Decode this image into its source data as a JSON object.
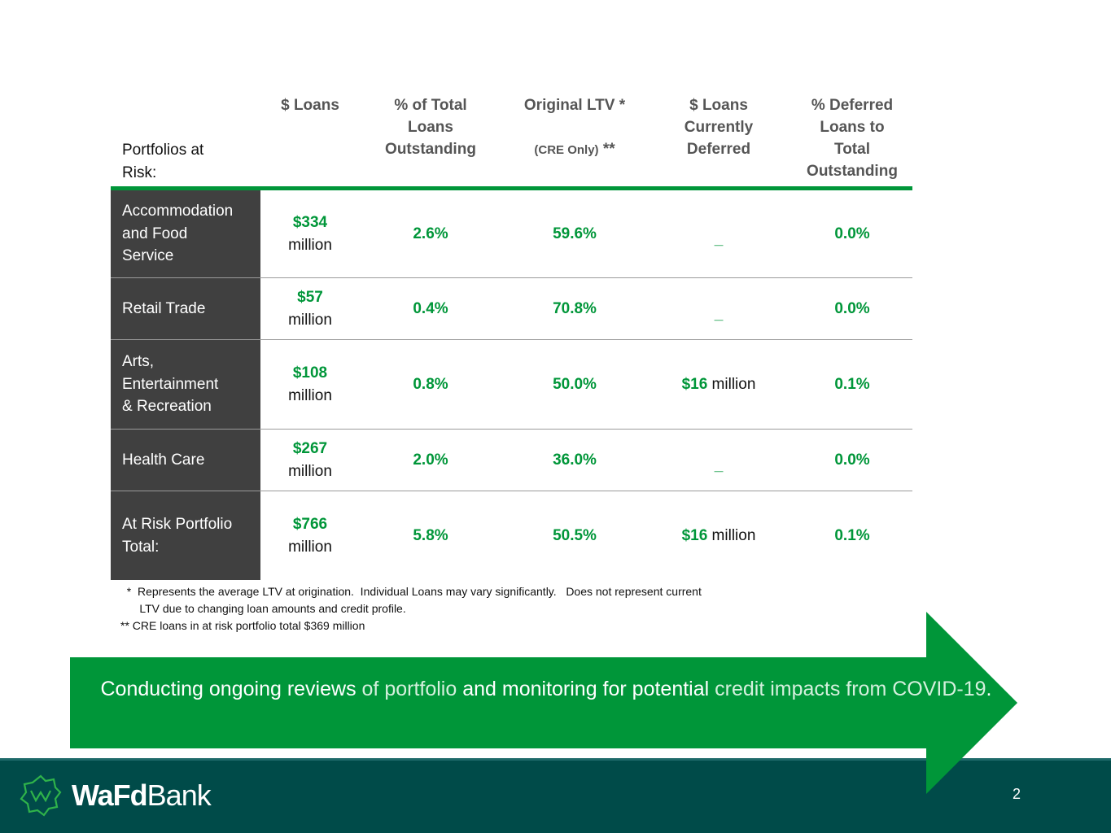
{
  "table": {
    "first_header": "Portfolios at\nRisk:",
    "headers": [
      {
        "text": "$ Loans",
        "sub": ""
      },
      {
        "text": "% of Total\nLoans\nOutstanding",
        "sub": ""
      },
      {
        "text": "Original LTV *",
        "sub_small": "(CRE Only)",
        "sub": " **"
      },
      {
        "text": "$ Loans\nCurrently\nDeferred",
        "sub": ""
      },
      {
        "text": "% Deferred\nLoans to\nTotal\nOutstanding",
        "sub": ""
      }
    ],
    "rows": [
      {
        "label": "Accommodation\nand Food\nService",
        "amount": "$334",
        "amount_unit": "million",
        "pct_total": "2.6%",
        "ltv": "59.6%",
        "deferred": "_",
        "deferred_unit": "",
        "pct_deferred": "0.0%"
      },
      {
        "label": "Retail Trade",
        "amount": "$57",
        "amount_unit": "million",
        "pct_total": "0.4%",
        "ltv": "70.8%",
        "deferred": "_",
        "deferred_unit": "",
        "pct_deferred": "0.0%"
      },
      {
        "label": "Arts,\nEntertainment\n& Recreation",
        "amount": "$108",
        "amount_unit": "million",
        "pct_total": "0.8%",
        "ltv": "50.0%",
        "deferred": "$16",
        "deferred_unit": " million",
        "pct_deferred": "0.1%"
      },
      {
        "label": "Health Care",
        "amount": "$267",
        "amount_unit": "million",
        "pct_total": "2.0%",
        "ltv": "36.0%",
        "deferred": "_",
        "deferred_unit": "",
        "pct_deferred": "0.0%"
      },
      {
        "label": "At Risk Portfolio\nTotal:",
        "amount": "$766",
        "amount_unit": "million",
        "pct_total": "5.8%",
        "ltv": "50.5%",
        "deferred": "$16",
        "deferred_unit": " million",
        "pct_deferred": "0.1%"
      }
    ]
  },
  "notes": [
    "  *  Represents the average LTV at origination.  Individual Loans may vary significantly.   Does not represent current",
    "      LTV due to changing loan amounts and credit profile.",
    "** CRE loans in at risk portfolio total $369 million"
  ],
  "banner": {
    "part1": "Conducting ongoing reviews",
    "part2": " of portfolio ",
    "part3": "and monitoring for potential",
    "part4": " credit impacts from COVID-19",
    "part5": "."
  },
  "footer": {
    "logo_bold": "WaFd",
    "logo_light": "Bank",
    "page_number": "2"
  },
  "colors": {
    "accent_green": "#009639",
    "footer_teal": "#004b49",
    "label_gray": "#404040"
  }
}
